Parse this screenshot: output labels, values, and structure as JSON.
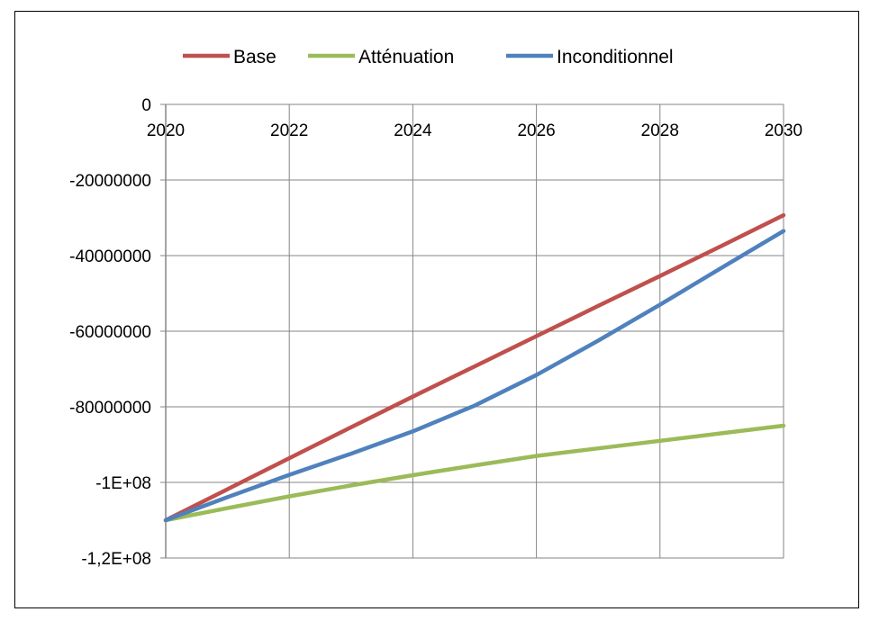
{
  "chart_data": {
    "type": "line",
    "title": "",
    "xlabel": "",
    "ylabel": "",
    "x": [
      2020,
      2021,
      2022,
      2023,
      2024,
      2025,
      2026,
      2027,
      2028,
      2029,
      2030
    ],
    "series": [
      {
        "name": "Base",
        "color": "#c0504d",
        "values": [
          -110000000,
          -101800000,
          -93600000,
          -85400000,
          -77300000,
          -69300000,
          -61300000,
          -53300000,
          -45400000,
          -37400000,
          -29300000
        ]
      },
      {
        "name": "Atténuation",
        "color": "#9bbb59",
        "values": [
          -110000000,
          -106800000,
          -103700000,
          -100800000,
          -98100000,
          -95500000,
          -93000000,
          -91000000,
          -89000000,
          -87000000,
          -85000000
        ]
      },
      {
        "name": "Inconditionnel",
        "color": "#4f81bd",
        "values": [
          -110000000,
          -103900000,
          -98000000,
          -92400000,
          -86500000,
          -79700000,
          -71600000,
          -62500000,
          -53000000,
          -43200000,
          -33500000
        ]
      }
    ],
    "x_ticks": [
      "2020",
      "2022",
      "2024",
      "2026",
      "2028",
      "2030"
    ],
    "x_tick_values": [
      2020,
      2022,
      2024,
      2026,
      2028,
      2030
    ],
    "y_ticks": [
      "0",
      "-20000000",
      "-40000000",
      "-60000000",
      "-80000000",
      "-1E+08",
      "-1,2E+08"
    ],
    "y_tick_values": [
      0,
      -20000000,
      -40000000,
      -60000000,
      -80000000,
      -100000000,
      -120000000
    ],
    "xlim": [
      2020,
      2030
    ],
    "ylim": [
      -120000000,
      0
    ],
    "x_axis_position": "top",
    "grid": true,
    "legend_position": "top",
    "grid_color": "#868686"
  }
}
